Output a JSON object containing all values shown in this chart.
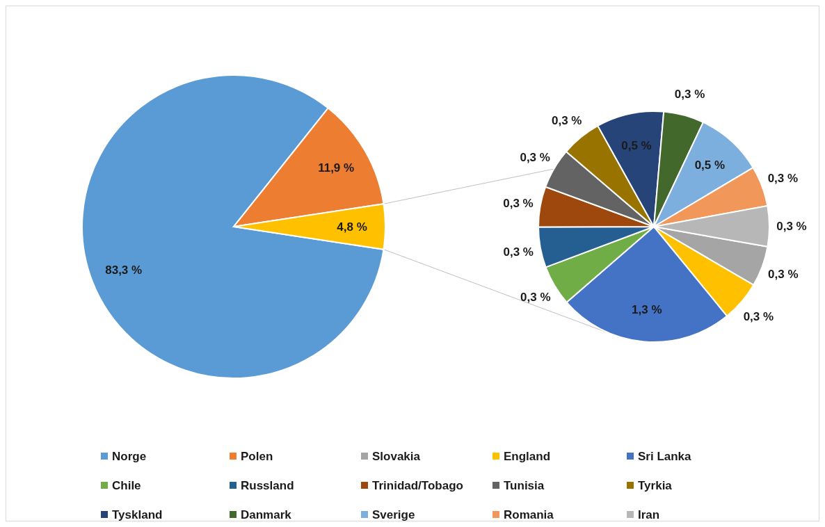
{
  "chart_data": [
    {
      "type": "pie",
      "categories": [
        "Norge",
        "Polen",
        null
      ],
      "values": [
        83.3,
        11.9,
        4.8
      ],
      "colors": [
        "#5b9bd5",
        "#ed7d31",
        "#ffc000"
      ],
      "value_labels": [
        "83,3 %",
        "11,9 %",
        "4,8 %"
      ],
      "legend": "bottom"
    },
    {
      "type": "pie",
      "categories": [
        "Slovakia",
        "England",
        "Sri Lanka",
        "Chile",
        "Russland",
        "Trinidad/Tobago",
        "Tunisia",
        "Tyrkia",
        "Tyskland",
        "Danmark",
        "Sverige",
        "Romania",
        "Iran"
      ],
      "values": [
        0.3,
        0.3,
        1.3,
        0.3,
        0.3,
        0.3,
        0.3,
        0.3,
        0.5,
        0.3,
        0.5,
        0.3,
        0.3
      ],
      "colors": [
        "#a5a5a5",
        "#ffc000",
        "#4472c4",
        "#70ad47",
        "#255e91",
        "#9e480e",
        "#636363",
        "#997300",
        "#264478",
        "#43682b",
        "#7cafdd",
        "#f1975a",
        "#b7b7b7"
      ],
      "value_labels": [
        "0,3 %",
        "0,3 %",
        "1,3 %",
        "0,3 %",
        "0,3 %",
        "0,3 %",
        "0,3 %",
        "0,3 %",
        "0,5 %",
        "0,3 %",
        "0,5 %",
        "0,3 %",
        "0,3 %"
      ],
      "legend": "bottom"
    }
  ]
}
